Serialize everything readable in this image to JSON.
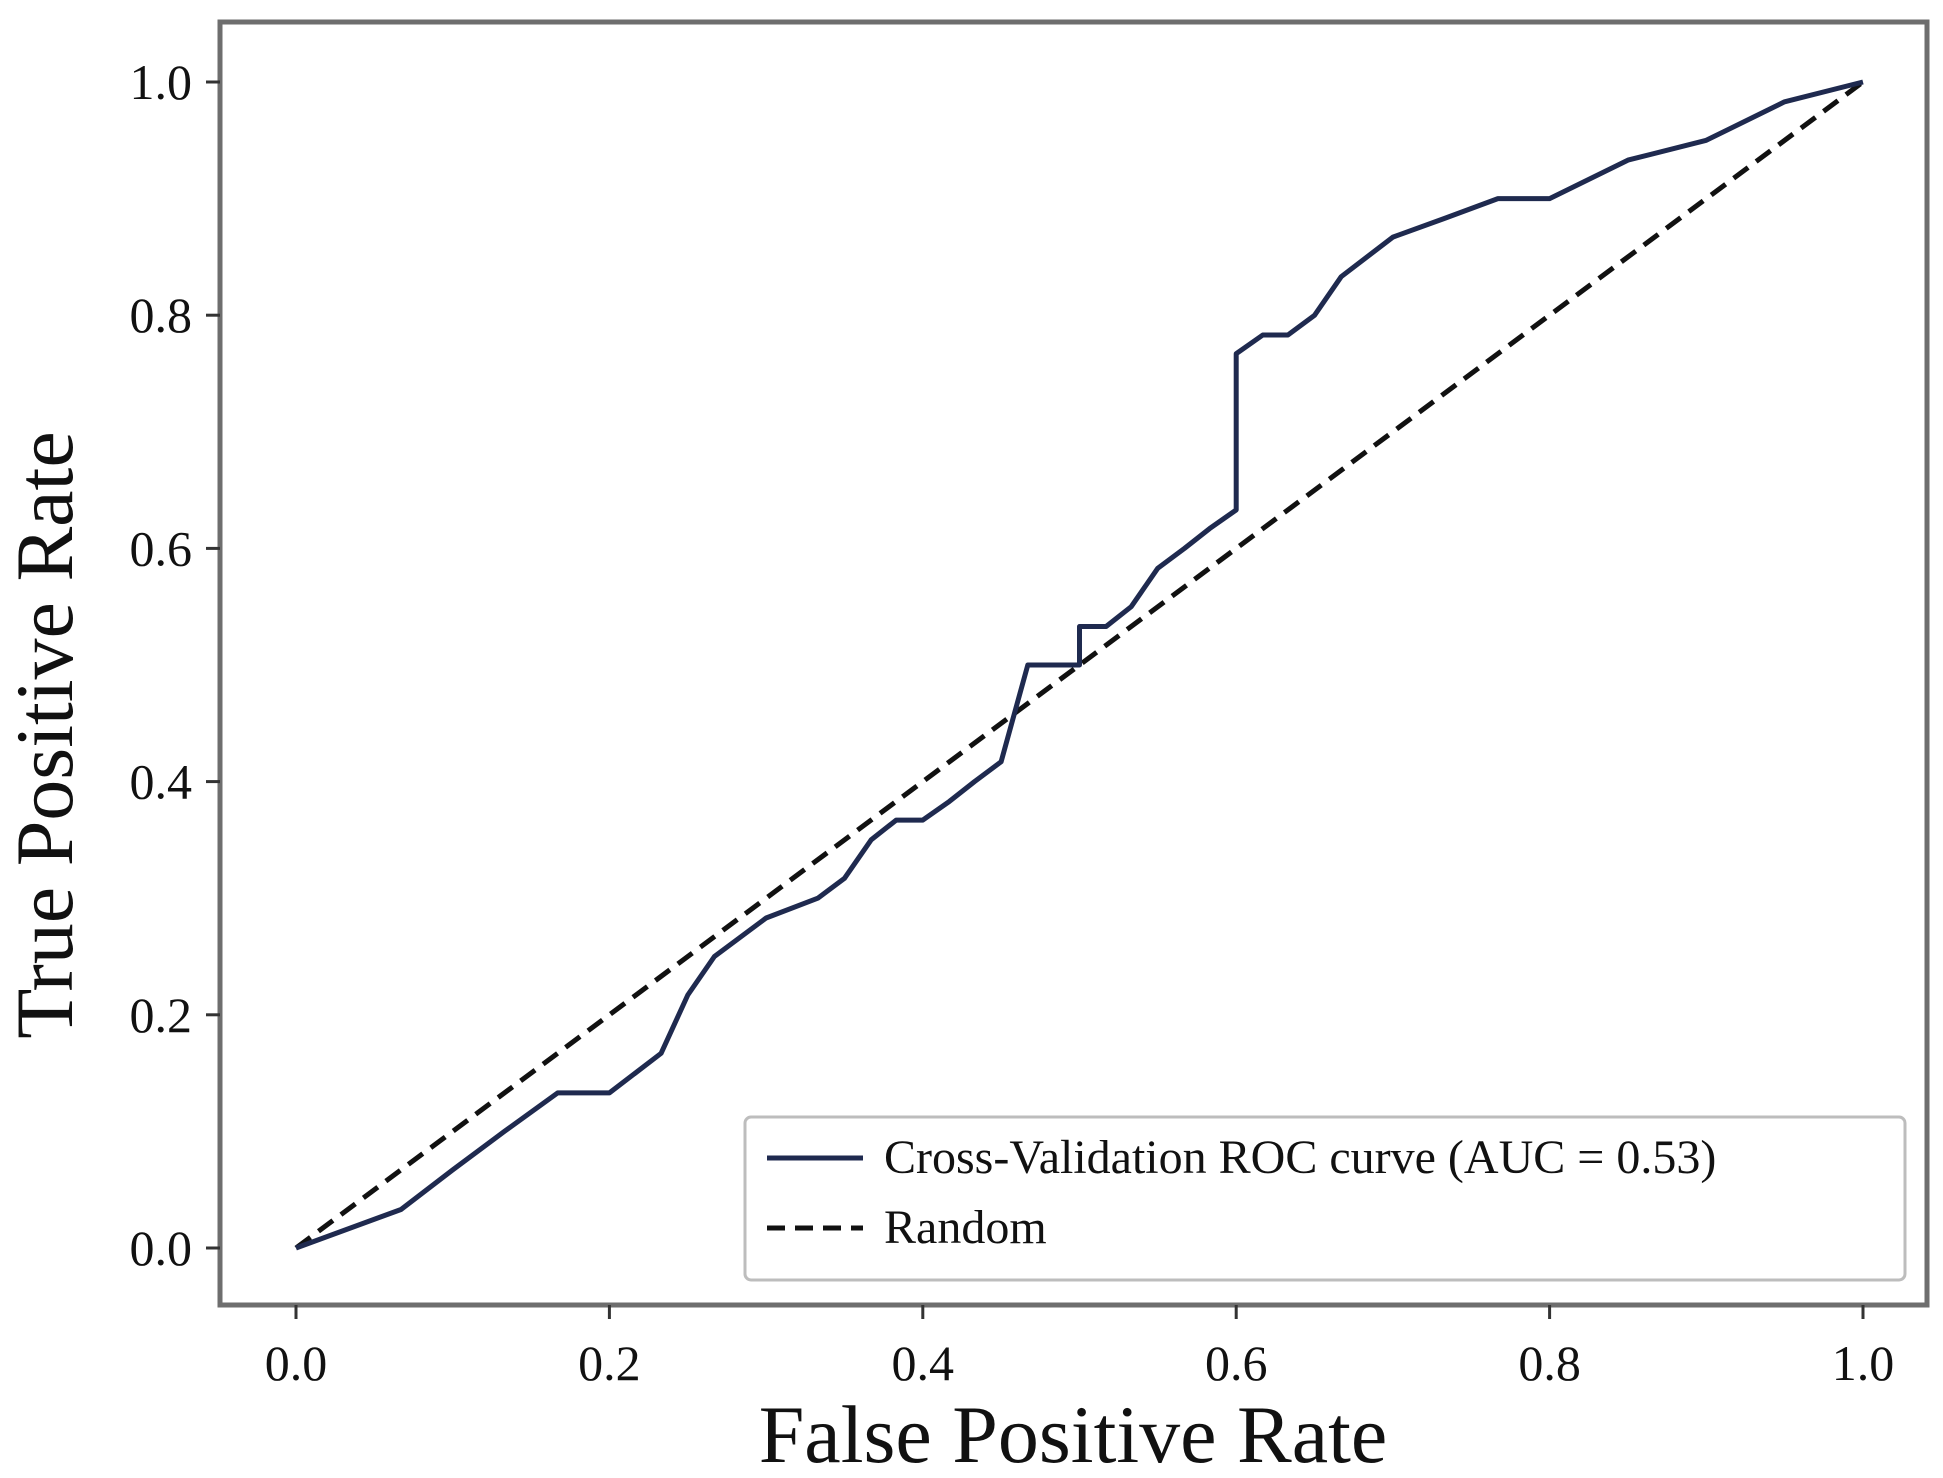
{
  "chart_data": {
    "type": "line",
    "title": "",
    "xlabel": "False Positive Rate",
    "ylabel": "True Positive Rate",
    "xlim": [
      0.0,
      1.0
    ],
    "ylim": [
      0.0,
      1.0
    ],
    "xticks": [
      "0.0",
      "0.2",
      "0.4",
      "0.6",
      "0.8",
      "1.0"
    ],
    "yticks": [
      "0.0",
      "0.2",
      "0.4",
      "0.6",
      "0.8",
      "1.0"
    ],
    "grid": false,
    "legend_position": "lower-right",
    "series": [
      {
        "name": "Cross-Validation ROC curve (AUC = 0.53)",
        "style": "solid",
        "color": "#1f2a4f",
        "x": [
          0.0,
          0.067,
          0.1,
          0.133,
          0.167,
          0.2,
          0.233,
          0.25,
          0.267,
          0.3,
          0.333,
          0.35,
          0.367,
          0.383,
          0.4,
          0.417,
          0.433,
          0.45,
          0.467,
          0.467,
          0.5,
          0.5,
          0.517,
          0.533,
          0.55,
          0.567,
          0.583,
          0.6,
          0.6,
          0.617,
          0.633,
          0.65,
          0.667,
          0.7,
          0.733,
          0.767,
          0.8,
          0.85,
          0.9,
          0.95,
          1.0
        ],
        "y": [
          0.0,
          0.033,
          0.067,
          0.1,
          0.133,
          0.133,
          0.167,
          0.217,
          0.25,
          0.283,
          0.3,
          0.317,
          0.35,
          0.367,
          0.367,
          0.383,
          0.4,
          0.417,
          0.5,
          0.5,
          0.5,
          0.533,
          0.533,
          0.55,
          0.583,
          0.6,
          0.617,
          0.633,
          0.767,
          0.783,
          0.783,
          0.8,
          0.833,
          0.867,
          0.883,
          0.9,
          0.9,
          0.933,
          0.95,
          0.983,
          1.0
        ]
      },
      {
        "name": "Random",
        "style": "dashed",
        "color": "#111111",
        "x": [
          0.0,
          1.0
        ],
        "y": [
          0.0,
          1.0
        ]
      }
    ]
  }
}
